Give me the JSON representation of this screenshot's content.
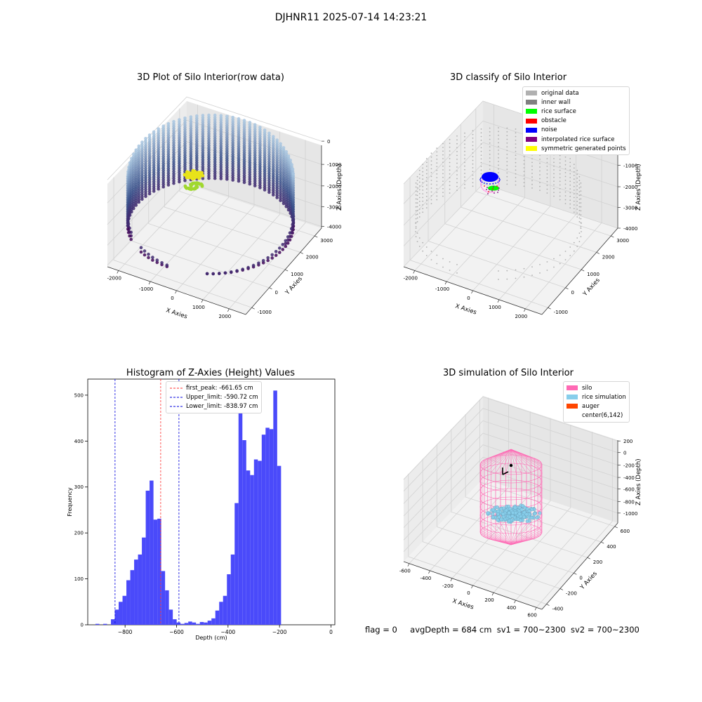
{
  "suptitle": "DJHNR11 2025-07-14 14:23:21",
  "status": {
    "flag": "flag = 0",
    "avg_depth": "avgDepth = 684 cm",
    "sv1": "sv1 = 700~2300",
    "sv2": "sv2 = 700~2300"
  },
  "chart_data": [
    {
      "type": "scatter",
      "subtype": "3d",
      "title": "3D Plot of Silo Interior(row data)",
      "xlabel": "X Axies",
      "ylabel": "Y Axies",
      "zlabel": "Z Axies (Depth)",
      "xticks": [
        "-2000",
        "-1000",
        "0",
        "1000",
        "2000"
      ],
      "yticks": [
        "-1000",
        "0",
        "1000",
        "2000",
        "3000"
      ],
      "zticks": [
        "0",
        "-1000",
        "-2000",
        "-3000",
        "-4000"
      ],
      "colormap": "viridis",
      "colors": {
        "low": "#440154",
        "mid": "#3b528b",
        "high": "#a8c6e0",
        "top_green": "#a0d82f",
        "top_yellow": "#e8e31a"
      }
    },
    {
      "type": "scatter",
      "subtype": "3d",
      "title": "3D classify of Silo Interior",
      "xlabel": "X Axies",
      "ylabel": "Y Axies",
      "zlabel": "Z Axies (Depth)",
      "xticks": [
        "-2000",
        "-1000",
        "0",
        "1000",
        "2000"
      ],
      "yticks": [
        "-1000",
        "0",
        "1000",
        "2000",
        "3000"
      ],
      "zticks": [
        "0",
        "-1000",
        "-2000",
        "-3000",
        "-4000"
      ],
      "legend": [
        {
          "label": "original data",
          "color": "#b0b0b0"
        },
        {
          "label": "inner wall",
          "color": "#808080"
        },
        {
          "label": "rice surface",
          "color": "#00ff00"
        },
        {
          "label": "obstacle",
          "color": "#ff0000"
        },
        {
          "label": "noise",
          "color": "#0000ff"
        },
        {
          "label": "interpolated rice surface",
          "color": "#800080"
        },
        {
          "label": "symmetric generated points",
          "color": "#ffff00"
        }
      ],
      "legend_position": "top-right"
    },
    {
      "type": "bar",
      "subtype": "histogram",
      "title": "Histogram of Z-Axies (Height) Values",
      "xlabel": "Depth (cm)",
      "ylabel": "Frequency",
      "xlim": [
        -945,
        15
      ],
      "ylim": [
        0,
        535
      ],
      "xticks": [
        -800,
        -600,
        -400,
        -200,
        0
      ],
      "yticks": [
        0,
        100,
        200,
        300,
        400,
        500
      ],
      "bar_color": "#4a4afa",
      "bin_start": -915,
      "bin_width": 15.02,
      "counts": [
        2,
        0,
        2,
        0,
        12,
        33,
        50,
        63,
        97,
        119,
        142,
        153,
        190,
        292,
        314,
        229,
        231,
        117,
        75,
        33,
        12,
        5,
        2,
        4,
        7,
        5,
        2,
        6,
        5,
        9,
        14,
        31,
        50,
        63,
        110,
        153,
        265,
        468,
        402,
        336,
        326,
        360,
        357,
        414,
        429,
        426,
        510,
        346
      ],
      "lines": [
        {
          "label": "first_peak: -661.65 cm",
          "value": -661.65,
          "color": "#ff3030"
        },
        {
          "label": "Upper_limit: -590.72 cm",
          "value": -590.72,
          "color": "#0000dd"
        },
        {
          "label": "Lower_limit: -838.97 cm",
          "value": -838.97,
          "color": "#0000dd"
        }
      ],
      "legend_position": "top-center"
    },
    {
      "type": "scatter",
      "subtype": "3d",
      "title": "3D simulation of Silo Interior",
      "xlabel": "X Axies",
      "ylabel": "Y Axies",
      "zlabel": "Z Axies (Depth)",
      "xticks": [
        "-600",
        "-400",
        "-200",
        "0",
        "200",
        "400",
        "600"
      ],
      "yticks": [
        "-400",
        "-200",
        "0",
        "200",
        "400",
        "600"
      ],
      "zticks": [
        "200",
        "0",
        "-200",
        "-400",
        "-600",
        "-800",
        "-1000"
      ],
      "legend": [
        {
          "label": "silo",
          "color": "#ff69b4"
        },
        {
          "label": "rice simulation",
          "color": "#87ceeb"
        },
        {
          "label": "auger",
          "color": "#ff4500"
        },
        {
          "label": "center(6,142)",
          "color": "#ffffff"
        }
      ],
      "legend_position": "top-right"
    }
  ]
}
